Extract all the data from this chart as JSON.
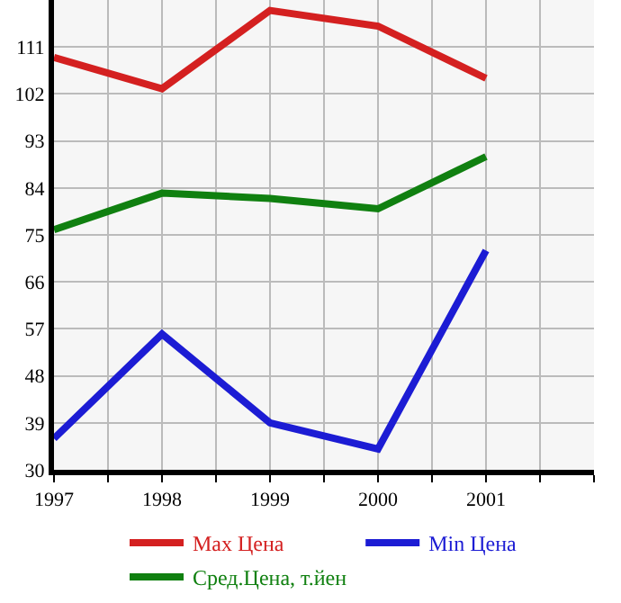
{
  "chart_data": {
    "type": "line",
    "x": [
      1997,
      1998,
      1999,
      2000,
      2001
    ],
    "series": [
      {
        "name": "Max Цена",
        "color": "#d42020",
        "values": [
          109,
          103,
          118,
          115,
          105
        ]
      },
      {
        "name": "Min Цена",
        "color": "#1c1cd4",
        "values": [
          36,
          56,
          39,
          34,
          72
        ]
      },
      {
        "name": "Сред.Цена, т.йен",
        "color": "#108010",
        "values": [
          76,
          83,
          82,
          80,
          90
        ]
      }
    ],
    "xlim": [
      1997,
      2002
    ],
    "xticks": [
      1997,
      {
        "value": 1997.5,
        "label": null
      },
      1998,
      {
        "value": 1998.5,
        "label": null
      },
      1999,
      {
        "value": 1999.5,
        "label": null
      },
      2000,
      {
        "value": 2000.5,
        "label": null
      },
      2001,
      {
        "value": 2001.5,
        "label": null
      },
      {
        "value": 2002,
        "label": null
      }
    ],
    "ylim": [
      30,
      120
    ],
    "yticks": [
      30,
      39,
      48,
      57,
      66,
      75,
      84,
      93,
      102,
      111,
      {
        "value": 120,
        "label": null
      }
    ],
    "grid": true,
    "legend": "bottom",
    "marker": "none",
    "line_style": "solid"
  }
}
